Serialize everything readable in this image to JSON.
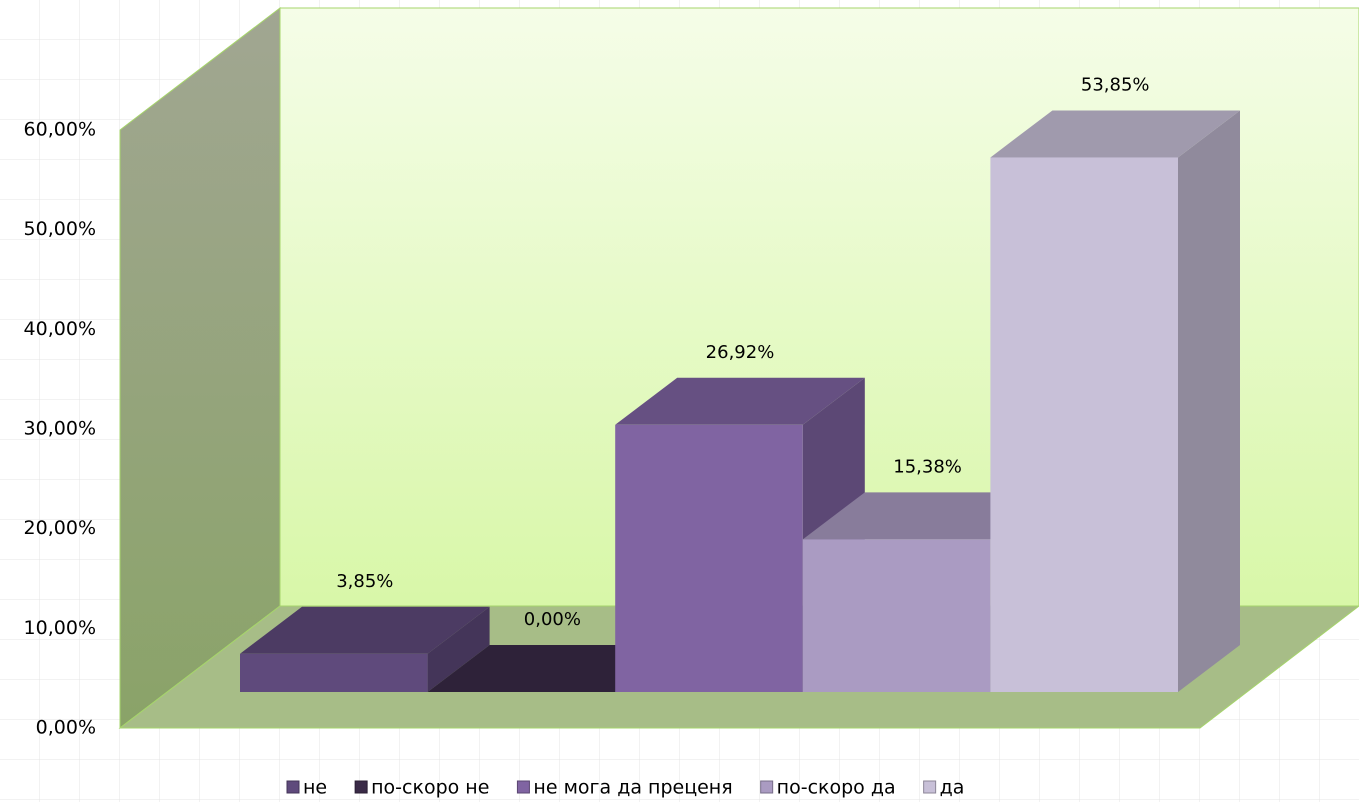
{
  "chart_data": {
    "type": "bar3d",
    "series": [
      {
        "name": "не",
        "color": "#5f4a7c",
        "values": [
          3.85
        ],
        "value_labels": [
          "3,85%"
        ]
      },
      {
        "name": "по-скоро не",
        "color": "#3a2a47",
        "values": [
          0
        ],
        "value_labels": [
          "0,00%"
        ]
      },
      {
        "name": "не мога да преценя",
        "color": "#8064a2",
        "values": [
          26.92
        ],
        "value_labels": [
          "26,92%"
        ]
      },
      {
        "name": "по-скоро да",
        "color": "#aa9bc2",
        "values": [
          15.38
        ],
        "value_labels": [
          "15,38%"
        ]
      },
      {
        "name": "да",
        "color": "#c8c0d8",
        "values": [
          53.85
        ],
        "value_labels": [
          "53,85%"
        ]
      }
    ],
    "ylim": [
      0,
      60
    ],
    "yticks": [
      {
        "value": 0,
        "label": "0,00%"
      },
      {
        "value": 10,
        "label": "10,00%"
      },
      {
        "value": 20,
        "label": "20,00%"
      },
      {
        "value": 30,
        "label": "30,00%"
      },
      {
        "value": 40,
        "label": "40,00%"
      },
      {
        "value": 50,
        "label": "50,00%"
      },
      {
        "value": 60,
        "label": "60,00%"
      }
    ],
    "legend": "bottom"
  }
}
